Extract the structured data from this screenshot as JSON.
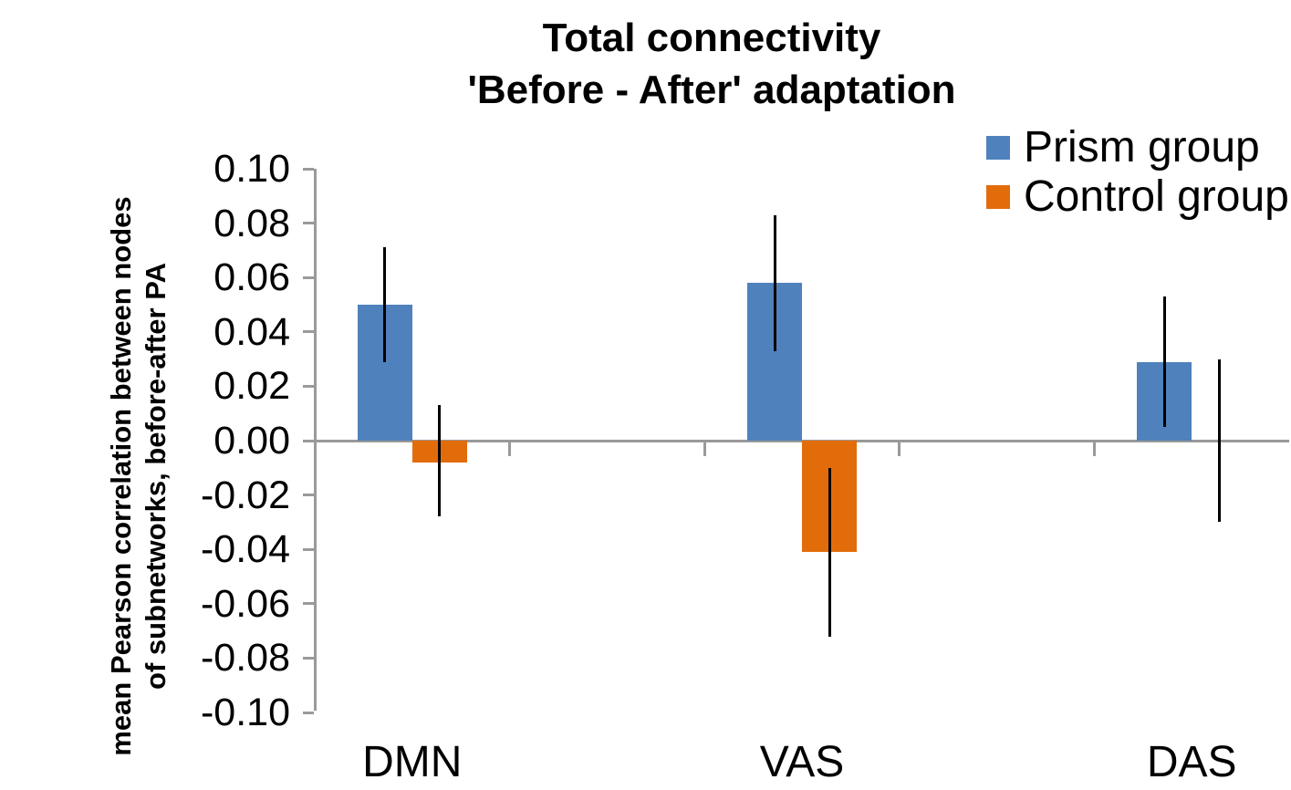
{
  "title": {
    "line1": "Total connectivity",
    "line2": "'Before - After' adaptation"
  },
  "legend": [
    {
      "label": "Prism group",
      "color": "#4F81BD"
    },
    {
      "label": "Control group",
      "color": "#E36C0A"
    }
  ],
  "y_axis": {
    "label_line1": "mean Pearson correlation between nodes",
    "label_line2": "of subnetworks, before-after PA",
    "tick_labels": [
      "0.10",
      "0.08",
      "0.06",
      "0.04",
      "0.02",
      "0.00",
      "-0.02",
      "-0.04",
      "-0.06",
      "-0.08",
      "-0.10"
    ]
  },
  "x_axis": {
    "categories": [
      "DMN",
      "VAS",
      "DAS"
    ]
  },
  "colors": {
    "axis": "#9A9A9A",
    "error_bar": "#000000",
    "background": "#FFFFFF",
    "text": "#000000"
  },
  "chart_data": {
    "type": "bar",
    "title": "Total connectivity 'Before - After' adaptation",
    "categories": [
      "DMN",
      "VAS",
      "DAS"
    ],
    "series": [
      {
        "name": "Prism group",
        "color": "#4F81BD",
        "values": [
          0.05,
          0.058,
          0.029
        ],
        "error_low": [
          0.029,
          0.033,
          0.005
        ],
        "error_high": [
          0.071,
          0.083,
          0.053
        ]
      },
      {
        "name": "Control group",
        "color": "#E36C0A",
        "values": [
          -0.008,
          -0.041,
          0.0
        ],
        "error_low": [
          -0.028,
          -0.072,
          -0.03
        ],
        "error_high": [
          0.013,
          -0.01,
          0.03
        ]
      }
    ],
    "xlabel": "",
    "ylabel": "mean Pearson correlation between nodes of subnetworks, before-after PA",
    "ylim": [
      -0.1,
      0.1
    ],
    "ytick_step": 0.02,
    "grid": false,
    "legend_position": "top-right",
    "error_bars": true
  }
}
